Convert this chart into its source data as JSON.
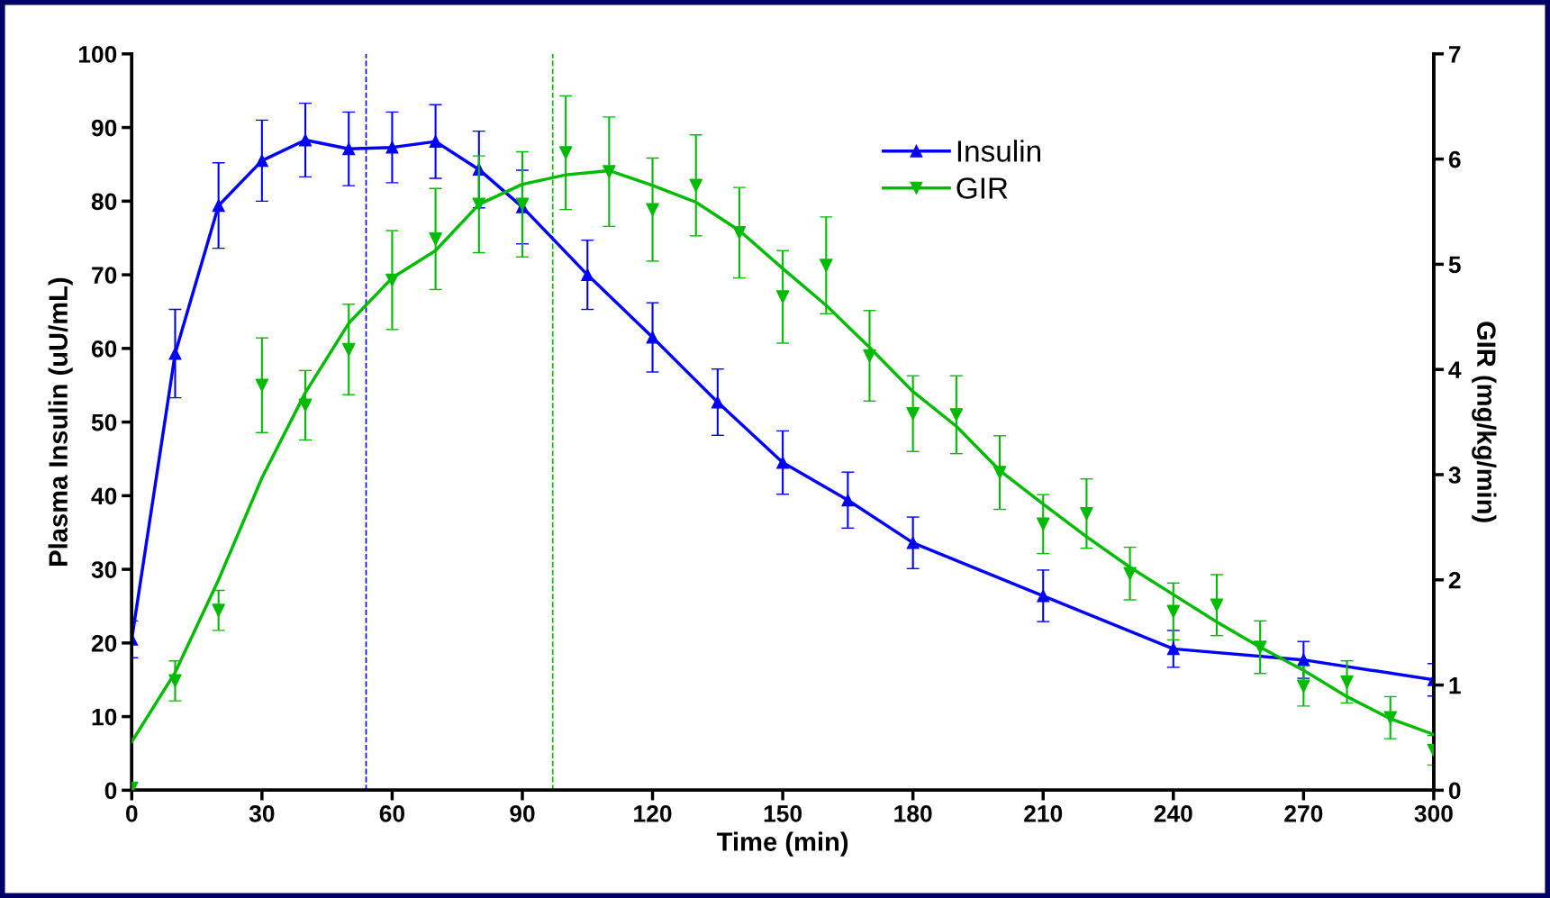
{
  "chart_data": {
    "type": "line",
    "xlabel": "Time (min)",
    "ylabel": "Plasma Insulin (uU/mL)",
    "y2label": "GIR (mg/kg/min)",
    "xlim": [
      0,
      300
    ],
    "xticks": [
      0,
      30,
      60,
      90,
      120,
      150,
      180,
      210,
      240,
      270,
      300
    ],
    "ylim": [
      0,
      100
    ],
    "yticks": [
      0,
      10,
      20,
      30,
      40,
      50,
      60,
      70,
      80,
      90,
      100
    ],
    "y2lim": [
      0,
      7
    ],
    "y2ticks": [
      0,
      1,
      2,
      3,
      4,
      5,
      6,
      7
    ],
    "grid": false,
    "legend": "top right",
    "series": [
      {
        "name": "Insulin",
        "color": "#0000ff",
        "marker": "triangle",
        "x": [
          0,
          10,
          20,
          30,
          40,
          50,
          60,
          70,
          80,
          90,
          105,
          120,
          135,
          150,
          165,
          180,
          210,
          240,
          270,
          300
        ],
        "values": [
          20.5,
          59.3,
          79.4,
          85.5,
          88.3,
          87.1,
          87.3,
          88.1,
          84.3,
          79.2,
          70,
          61.5,
          52.7,
          44.5,
          39.4,
          33.6,
          26.4,
          19.2,
          17.7,
          15.0
        ],
        "errors": [
          2.5,
          6,
          5.8,
          5.5,
          5,
          5,
          4.8,
          5,
          5.2,
          5,
          4.7,
          4.7,
          4.5,
          4.3,
          3.8,
          3.5,
          3.5,
          2.5,
          2.5,
          2.2
        ]
      },
      {
        "name": "GIR",
        "type": "scatter",
        "axis": "y2",
        "color": "#00bb00",
        "marker": "triangle_down",
        "x": [
          0,
          10,
          20,
          30,
          40,
          50,
          60,
          70,
          80,
          90,
          100,
          110,
          120,
          130,
          140,
          150,
          160,
          170,
          180,
          190,
          200,
          210,
          220,
          230,
          240,
          250,
          260,
          270,
          280,
          290,
          300
        ],
        "values": [
          0.02,
          1.04,
          1.71,
          3.85,
          3.66,
          4.19,
          4.85,
          5.24,
          5.57,
          5.57,
          6.06,
          5.88,
          5.52,
          5.75,
          5.3,
          4.69,
          4.99,
          4.13,
          3.58,
          3.57,
          3.02,
          2.53,
          2.63,
          2.06,
          1.7,
          1.76,
          1.36,
          0.99,
          1.03,
          0.69,
          0.38
        ],
        "errors": [
          null,
          0.19,
          0.19,
          0.45,
          0.33,
          0.43,
          0.47,
          0.48,
          0.46,
          0.5,
          0.54,
          0.52,
          0.49,
          0.48,
          0.43,
          0.44,
          0.46,
          0.43,
          0.36,
          0.37,
          0.35,
          0.28,
          0.33,
          0.25,
          0.27,
          0.29,
          0.25,
          0.19,
          0.2,
          0.2,
          0.14
        ]
      },
      {
        "type": "line",
        "axis": "y2",
        "color": "#00bb00",
        "marker": "none",
        "x": [
          0,
          10,
          20,
          30,
          40,
          50,
          60,
          70,
          80,
          90,
          100,
          110,
          120,
          130,
          140,
          150,
          160,
          170,
          180,
          190,
          200,
          210,
          220,
          230,
          240,
          250,
          260,
          270,
          280,
          290,
          300
        ],
        "values": [
          0.46,
          1.12,
          2.0,
          2.97,
          3.78,
          4.44,
          4.87,
          5.13,
          5.57,
          5.76,
          5.85,
          5.89,
          5.75,
          5.59,
          5.32,
          4.96,
          4.61,
          4.21,
          3.79,
          3.46,
          3.04,
          2.72,
          2.41,
          2.12,
          1.86,
          1.6,
          1.36,
          1.14,
          0.89,
          0.68,
          0.53
        ]
      }
    ],
    "ref_lines": [
      {
        "axis": "x",
        "value": 54,
        "color": "#0000ff",
        "line_style": "dashed"
      },
      {
        "axis": "x",
        "value": 97,
        "color": "#00bb00",
        "line_style": "dashed"
      }
    ]
  }
}
